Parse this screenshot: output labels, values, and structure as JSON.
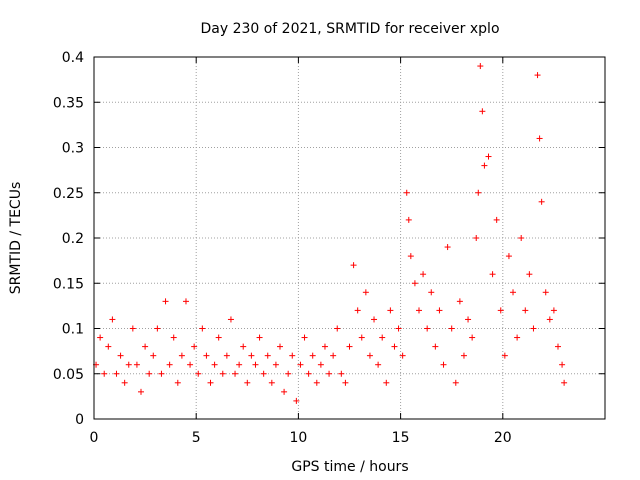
{
  "chart_data": {
    "type": "scatter",
    "title": "Day 230 of 2021, SRMTID for receiver xplo",
    "xlabel": "GPS time / hours",
    "ylabel": "SRMTID / TECUs",
    "xlim": [
      0,
      25
    ],
    "ylim": [
      0,
      0.4
    ],
    "x_ticks": [
      "0",
      "5",
      "10",
      "15",
      "20"
    ],
    "y_ticks": [
      "0",
      "0.05",
      "0.1",
      "0.15",
      "0.2",
      "0.25",
      "0.3",
      "0.35",
      "0.4"
    ],
    "grid": true,
    "marker": "+",
    "colors": {
      "series": "#ff0000",
      "grid": "#a0a0a0",
      "axis": "#000000"
    },
    "series": [
      {
        "name": "SRMTID",
        "points": [
          [
            0.1,
            0.06
          ],
          [
            0.3,
            0.09
          ],
          [
            0.5,
            0.05
          ],
          [
            0.7,
            0.08
          ],
          [
            0.9,
            0.11
          ],
          [
            1.1,
            0.05
          ],
          [
            1.3,
            0.07
          ],
          [
            1.5,
            0.04
          ],
          [
            1.7,
            0.06
          ],
          [
            1.9,
            0.1
          ],
          [
            2.1,
            0.06
          ],
          [
            2.3,
            0.03
          ],
          [
            2.5,
            0.08
          ],
          [
            2.7,
            0.05
          ],
          [
            2.9,
            0.07
          ],
          [
            3.1,
            0.1
          ],
          [
            3.3,
            0.05
          ],
          [
            3.5,
            0.13
          ],
          [
            3.7,
            0.06
          ],
          [
            3.9,
            0.09
          ],
          [
            4.1,
            0.04
          ],
          [
            4.3,
            0.07
          ],
          [
            4.5,
            0.13
          ],
          [
            4.7,
            0.06
          ],
          [
            4.9,
            0.08
          ],
          [
            5.1,
            0.05
          ],
          [
            5.3,
            0.1
          ],
          [
            5.5,
            0.07
          ],
          [
            5.7,
            0.04
          ],
          [
            5.9,
            0.06
          ],
          [
            6.1,
            0.09
          ],
          [
            6.3,
            0.05
          ],
          [
            6.5,
            0.07
          ],
          [
            6.7,
            0.11
          ],
          [
            6.9,
            0.05
          ],
          [
            7.1,
            0.06
          ],
          [
            7.3,
            0.08
          ],
          [
            7.5,
            0.04
          ],
          [
            7.7,
            0.07
          ],
          [
            7.9,
            0.06
          ],
          [
            8.1,
            0.09
          ],
          [
            8.3,
            0.05
          ],
          [
            8.5,
            0.07
          ],
          [
            8.7,
            0.04
          ],
          [
            8.9,
            0.06
          ],
          [
            9.1,
            0.08
          ],
          [
            9.3,
            0.03
          ],
          [
            9.5,
            0.05
          ],
          [
            9.7,
            0.07
          ],
          [
            9.9,
            0.02
          ],
          [
            10.1,
            0.06
          ],
          [
            10.3,
            0.09
          ],
          [
            10.5,
            0.05
          ],
          [
            10.7,
            0.07
          ],
          [
            10.9,
            0.04
          ],
          [
            11.1,
            0.06
          ],
          [
            11.3,
            0.08
          ],
          [
            11.5,
            0.05
          ],
          [
            11.7,
            0.07
          ],
          [
            11.9,
            0.1
          ],
          [
            12.1,
            0.05
          ],
          [
            12.3,
            0.04
          ],
          [
            12.5,
            0.08
          ],
          [
            12.7,
            0.17
          ],
          [
            12.9,
            0.12
          ],
          [
            13.1,
            0.09
          ],
          [
            13.3,
            0.14
          ],
          [
            13.5,
            0.07
          ],
          [
            13.7,
            0.11
          ],
          [
            13.9,
            0.06
          ],
          [
            14.1,
            0.09
          ],
          [
            14.3,
            0.04
          ],
          [
            14.5,
            0.12
          ],
          [
            14.7,
            0.08
          ],
          [
            14.9,
            0.1
          ],
          [
            15.1,
            0.07
          ],
          [
            15.3,
            0.25
          ],
          [
            15.4,
            0.22
          ],
          [
            15.5,
            0.18
          ],
          [
            15.7,
            0.15
          ],
          [
            15.9,
            0.12
          ],
          [
            16.1,
            0.16
          ],
          [
            16.3,
            0.1
          ],
          [
            16.5,
            0.14
          ],
          [
            16.7,
            0.08
          ],
          [
            16.9,
            0.12
          ],
          [
            17.1,
            0.06
          ],
          [
            17.3,
            0.19
          ],
          [
            17.5,
            0.1
          ],
          [
            17.7,
            0.04
          ],
          [
            17.9,
            0.13
          ],
          [
            18.1,
            0.07
          ],
          [
            18.3,
            0.11
          ],
          [
            18.5,
            0.09
          ],
          [
            18.7,
            0.2
          ],
          [
            18.8,
            0.25
          ],
          [
            18.9,
            0.39
          ],
          [
            19.0,
            0.34
          ],
          [
            19.1,
            0.28
          ],
          [
            19.3,
            0.29
          ],
          [
            19.5,
            0.16
          ],
          [
            19.7,
            0.22
          ],
          [
            19.9,
            0.12
          ],
          [
            20.1,
            0.07
          ],
          [
            20.3,
            0.18
          ],
          [
            20.5,
            0.14
          ],
          [
            20.7,
            0.09
          ],
          [
            20.9,
            0.2
          ],
          [
            21.1,
            0.12
          ],
          [
            21.3,
            0.16
          ],
          [
            21.5,
            0.1
          ],
          [
            21.7,
            0.38
          ],
          [
            21.8,
            0.31
          ],
          [
            21.9,
            0.24
          ],
          [
            22.1,
            0.14
          ],
          [
            22.3,
            0.11
          ],
          [
            22.5,
            0.12
          ],
          [
            22.7,
            0.08
          ],
          [
            22.9,
            0.06
          ],
          [
            23.0,
            0.04
          ]
        ]
      }
    ]
  }
}
